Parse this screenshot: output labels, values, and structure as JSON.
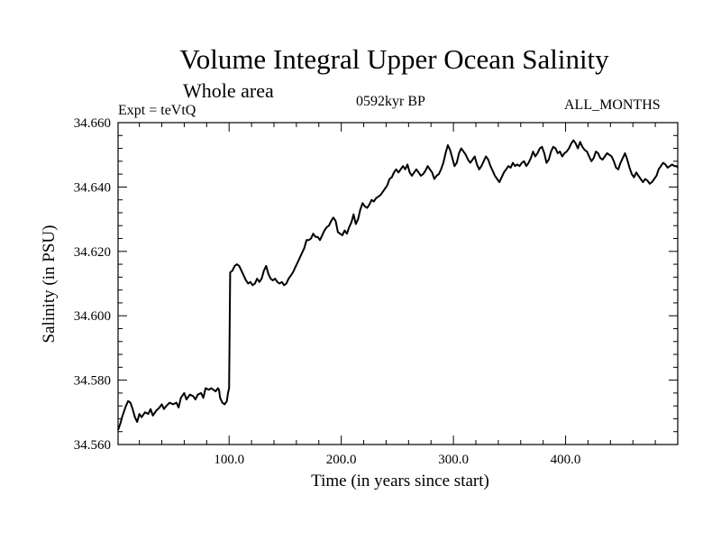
{
  "chart_data": {
    "type": "line",
    "title": "Volume Integral Upper Ocean Salinity",
    "subtitle": "Whole area",
    "annotations": {
      "experiment": "Expt = teVtQ",
      "period": "0592kyr BP",
      "months": "ALL_MONTHS"
    },
    "xlabel": "Time (in years since start)",
    "ylabel": "Salinity (in PSU)",
    "xlim": [
      1,
      500
    ],
    "ylim": [
      34.56,
      34.66
    ],
    "x_ticks": [
      100,
      200,
      300,
      400
    ],
    "x_tick_labels": [
      "100.0",
      "200.0",
      "300.0",
      "400.0"
    ],
    "y_ticks": [
      34.56,
      34.58,
      34.6,
      34.62,
      34.64,
      34.66
    ],
    "y_tick_labels": [
      "34.560",
      "34.580",
      "34.600",
      "34.620",
      "34.640",
      "34.660"
    ],
    "grid": false,
    "series": [
      {
        "color": "#000000",
        "points": [
          [
            1,
            34.5645
          ],
          [
            3,
            34.5665
          ],
          [
            5,
            34.569
          ],
          [
            8,
            34.572
          ],
          [
            10,
            34.5735
          ],
          [
            12,
            34.573
          ],
          [
            14,
            34.571
          ],
          [
            16,
            34.5685
          ],
          [
            18,
            34.567
          ],
          [
            20,
            34.5695
          ],
          [
            22,
            34.5685
          ],
          [
            25,
            34.57
          ],
          [
            28,
            34.5695
          ],
          [
            30,
            34.571
          ],
          [
            32,
            34.569
          ],
          [
            35,
            34.5705
          ],
          [
            38,
            34.5715
          ],
          [
            40,
            34.5725
          ],
          [
            42,
            34.571
          ],
          [
            44,
            34.572
          ],
          [
            47,
            34.573
          ],
          [
            50,
            34.5725
          ],
          [
            53,
            34.573
          ],
          [
            55,
            34.5715
          ],
          [
            57,
            34.5745
          ],
          [
            60,
            34.576
          ],
          [
            62,
            34.574
          ],
          [
            65,
            34.5755
          ],
          [
            68,
            34.575
          ],
          [
            70,
            34.574
          ],
          [
            72,
            34.5755
          ],
          [
            75,
            34.576
          ],
          [
            77,
            34.5745
          ],
          [
            79,
            34.5775
          ],
          [
            82,
            34.577
          ],
          [
            84,
            34.5775
          ],
          [
            86,
            34.577
          ],
          [
            88,
            34.5765
          ],
          [
            90,
            34.5775
          ],
          [
            91,
            34.577
          ],
          [
            92,
            34.5745
          ],
          [
            94,
            34.573
          ],
          [
            96,
            34.5725
          ],
          [
            98,
            34.5735
          ],
          [
            99,
            34.576
          ],
          [
            100,
            34.5775
          ],
          [
            101,
            34.6135
          ],
          [
            103,
            34.614
          ],
          [
            105,
            34.6155
          ],
          [
            107,
            34.616
          ],
          [
            109,
            34.6155
          ],
          [
            111,
            34.614
          ],
          [
            113,
            34.6125
          ],
          [
            115,
            34.611
          ],
          [
            117,
            34.61
          ],
          [
            119,
            34.6105
          ],
          [
            121,
            34.6095
          ],
          [
            123,
            34.61
          ],
          [
            125,
            34.6115
          ],
          [
            127,
            34.6105
          ],
          [
            129,
            34.6115
          ],
          [
            131,
            34.614
          ],
          [
            133,
            34.6155
          ],
          [
            135,
            34.613
          ],
          [
            137,
            34.6115
          ],
          [
            139,
            34.611
          ],
          [
            141,
            34.6115
          ],
          [
            143,
            34.6105
          ],
          [
            145,
            34.61
          ],
          [
            147,
            34.6105
          ],
          [
            149,
            34.6095
          ],
          [
            151,
            34.61
          ],
          [
            153,
            34.6115
          ],
          [
            155,
            34.6125
          ],
          [
            157,
            34.6135
          ],
          [
            159,
            34.615
          ],
          [
            161,
            34.6165
          ],
          [
            163,
            34.618
          ],
          [
            165,
            34.6195
          ],
          [
            167,
            34.621
          ],
          [
            169,
            34.6235
          ],
          [
            171,
            34.6235
          ],
          [
            173,
            34.624
          ],
          [
            175,
            34.6255
          ],
          [
            177,
            34.6245
          ],
          [
            179,
            34.6245
          ],
          [
            181,
            34.6235
          ],
          [
            183,
            34.625
          ],
          [
            185,
            34.6265
          ],
          [
            187,
            34.6275
          ],
          [
            189,
            34.628
          ],
          [
            191,
            34.6295
          ],
          [
            193,
            34.6305
          ],
          [
            195,
            34.6295
          ],
          [
            197,
            34.626
          ],
          [
            199,
            34.6255
          ],
          [
            201,
            34.625
          ],
          [
            203,
            34.6265
          ],
          [
            205,
            34.6255
          ],
          [
            207,
            34.6275
          ],
          [
            209,
            34.629
          ],
          [
            211,
            34.6315
          ],
          [
            213,
            34.6285
          ],
          [
            215,
            34.63
          ],
          [
            217,
            34.633
          ],
          [
            219,
            34.635
          ],
          [
            221,
            34.634
          ],
          [
            223,
            34.6335
          ],
          [
            225,
            34.6345
          ],
          [
            227,
            34.636
          ],
          [
            229,
            34.6355
          ],
          [
            231,
            34.6365
          ],
          [
            233,
            34.637
          ],
          [
            235,
            34.6375
          ],
          [
            237,
            34.6385
          ],
          [
            239,
            34.6395
          ],
          [
            241,
            34.6405
          ],
          [
            243,
            34.6425
          ],
          [
            245,
            34.643
          ],
          [
            247,
            34.6445
          ],
          [
            249,
            34.6455
          ],
          [
            251,
            34.6445
          ],
          [
            253,
            34.6455
          ],
          [
            255,
            34.6465
          ],
          [
            257,
            34.6455
          ],
          [
            259,
            34.647
          ],
          [
            261,
            34.6445
          ],
          [
            263,
            34.6435
          ],
          [
            265,
            34.6445
          ],
          [
            267,
            34.6455
          ],
          [
            269,
            34.6445
          ],
          [
            271,
            34.6435
          ],
          [
            273,
            34.644
          ],
          [
            275,
            34.645
          ],
          [
            277,
            34.6465
          ],
          [
            279,
            34.6455
          ],
          [
            281,
            34.6445
          ],
          [
            283,
            34.6425
          ],
          [
            285,
            34.6435
          ],
          [
            287,
            34.644
          ],
          [
            289,
            34.6455
          ],
          [
            291,
            34.6475
          ],
          [
            293,
            34.6505
          ],
          [
            295,
            34.653
          ],
          [
            297,
            34.6515
          ],
          [
            299,
            34.649
          ],
          [
            301,
            34.6465
          ],
          [
            303,
            34.6475
          ],
          [
            305,
            34.6505
          ],
          [
            307,
            34.652
          ],
          [
            309,
            34.651
          ],
          [
            311,
            34.65
          ],
          [
            313,
            34.6485
          ],
          [
            315,
            34.6475
          ],
          [
            317,
            34.6485
          ],
          [
            319,
            34.6495
          ],
          [
            321,
            34.647
          ],
          [
            323,
            34.6455
          ],
          [
            325,
            34.6465
          ],
          [
            327,
            34.648
          ],
          [
            329,
            34.6495
          ],
          [
            331,
            34.6485
          ],
          [
            333,
            34.6465
          ],
          [
            335,
            34.645
          ],
          [
            337,
            34.6435
          ],
          [
            339,
            34.6425
          ],
          [
            341,
            34.6415
          ],
          [
            343,
            34.643
          ],
          [
            345,
            34.6445
          ],
          [
            347,
            34.6455
          ],
          [
            349,
            34.6465
          ],
          [
            351,
            34.646
          ],
          [
            353,
            34.6475
          ],
          [
            355,
            34.6465
          ],
          [
            357,
            34.647
          ],
          [
            359,
            34.6465
          ],
          [
            361,
            34.6475
          ],
          [
            363,
            34.648
          ],
          [
            365,
            34.6465
          ],
          [
            367,
            34.6475
          ],
          [
            369,
            34.649
          ],
          [
            371,
            34.651
          ],
          [
            373,
            34.6495
          ],
          [
            375,
            34.6505
          ],
          [
            377,
            34.652
          ],
          [
            379,
            34.6525
          ],
          [
            381,
            34.6505
          ],
          [
            383,
            34.6475
          ],
          [
            385,
            34.6485
          ],
          [
            387,
            34.651
          ],
          [
            389,
            34.6525
          ],
          [
            391,
            34.652
          ],
          [
            393,
            34.6505
          ],
          [
            395,
            34.651
          ],
          [
            397,
            34.6495
          ],
          [
            399,
            34.6505
          ],
          [
            401,
            34.651
          ],
          [
            403,
            34.652
          ],
          [
            405,
            34.6535
          ],
          [
            407,
            34.6545
          ],
          [
            409,
            34.6535
          ],
          [
            411,
            34.652
          ],
          [
            413,
            34.654
          ],
          [
            415,
            34.6525
          ],
          [
            417,
            34.6515
          ],
          [
            419,
            34.651
          ],
          [
            421,
            34.6495
          ],
          [
            423,
            34.648
          ],
          [
            425,
            34.649
          ],
          [
            427,
            34.651
          ],
          [
            429,
            34.6505
          ],
          [
            431,
            34.649
          ],
          [
            433,
            34.6485
          ],
          [
            435,
            34.6495
          ],
          [
            437,
            34.6505
          ],
          [
            439,
            34.65
          ],
          [
            441,
            34.6495
          ],
          [
            443,
            34.648
          ],
          [
            445,
            34.646
          ],
          [
            447,
            34.6455
          ],
          [
            449,
            34.6475
          ],
          [
            451,
            34.649
          ],
          [
            453,
            34.6505
          ],
          [
            455,
            34.6485
          ],
          [
            457,
            34.646
          ],
          [
            459,
            34.644
          ],
          [
            461,
            34.643
          ],
          [
            463,
            34.6445
          ],
          [
            465,
            34.6435
          ],
          [
            467,
            34.6425
          ],
          [
            469,
            34.6415
          ],
          [
            471,
            34.6425
          ],
          [
            473,
            34.642
          ],
          [
            475,
            34.641
          ],
          [
            477,
            34.6415
          ],
          [
            479,
            34.6425
          ],
          [
            481,
            34.6435
          ],
          [
            483,
            34.6455
          ],
          [
            485,
            34.6465
          ],
          [
            487,
            34.6475
          ],
          [
            489,
            34.647
          ],
          [
            491,
            34.646
          ],
          [
            493,
            34.6465
          ],
          [
            495,
            34.647
          ],
          [
            497,
            34.6465
          ],
          [
            499,
            34.6465
          ],
          [
            500,
            34.646
          ]
        ]
      }
    ]
  }
}
